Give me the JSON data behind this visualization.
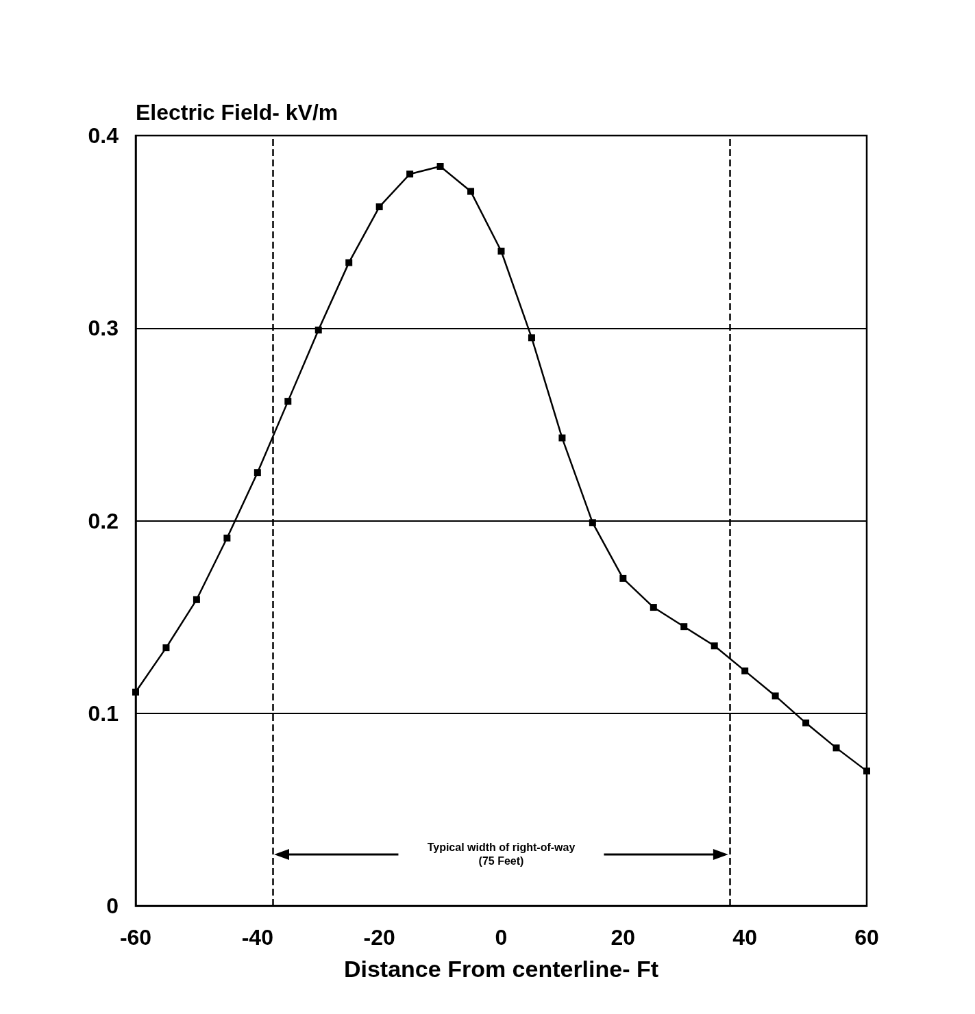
{
  "chart_data": {
    "type": "line",
    "ylabel": "Electric Field- kV/m",
    "xlabel": "Distance From centerline- Ft",
    "x": [
      -60,
      -55,
      -50,
      -45,
      -40,
      -35,
      -30,
      -25,
      -20,
      -15,
      -10,
      -5,
      0,
      5,
      10,
      15,
      20,
      25,
      30,
      35,
      40,
      45,
      50,
      55,
      60
    ],
    "series": [
      {
        "color": "#000000",
        "values": [
          0.111,
          0.134,
          0.159,
          0.191,
          0.225,
          0.262,
          0.299,
          0.334,
          0.363,
          0.38,
          0.384,
          0.371,
          0.34,
          0.295,
          0.243,
          0.199,
          0.17,
          0.155,
          0.145,
          0.135,
          0.122,
          0.109,
          0.095,
          0.082,
          0.07
        ]
      }
    ],
    "xlim": [
      -60,
      60
    ],
    "xticks": [
      -60,
      -40,
      -20,
      0,
      20,
      40,
      60
    ],
    "ylim": [
      0,
      0.4
    ],
    "yticks": [
      0,
      0.1,
      0.2,
      0.3,
      0.4
    ],
    "grid": "y",
    "marker": "square",
    "line_style": "solid",
    "ref_lines": [
      {
        "axis": "x",
        "value": -37.5,
        "color": "#000000",
        "line_style": "dashed"
      },
      {
        "axis": "x",
        "value": 37.5,
        "color": "#000000",
        "line_style": "dashed"
      }
    ],
    "annotations": [
      "Typical width of right-of-way\n(75 Feet)"
    ]
  }
}
